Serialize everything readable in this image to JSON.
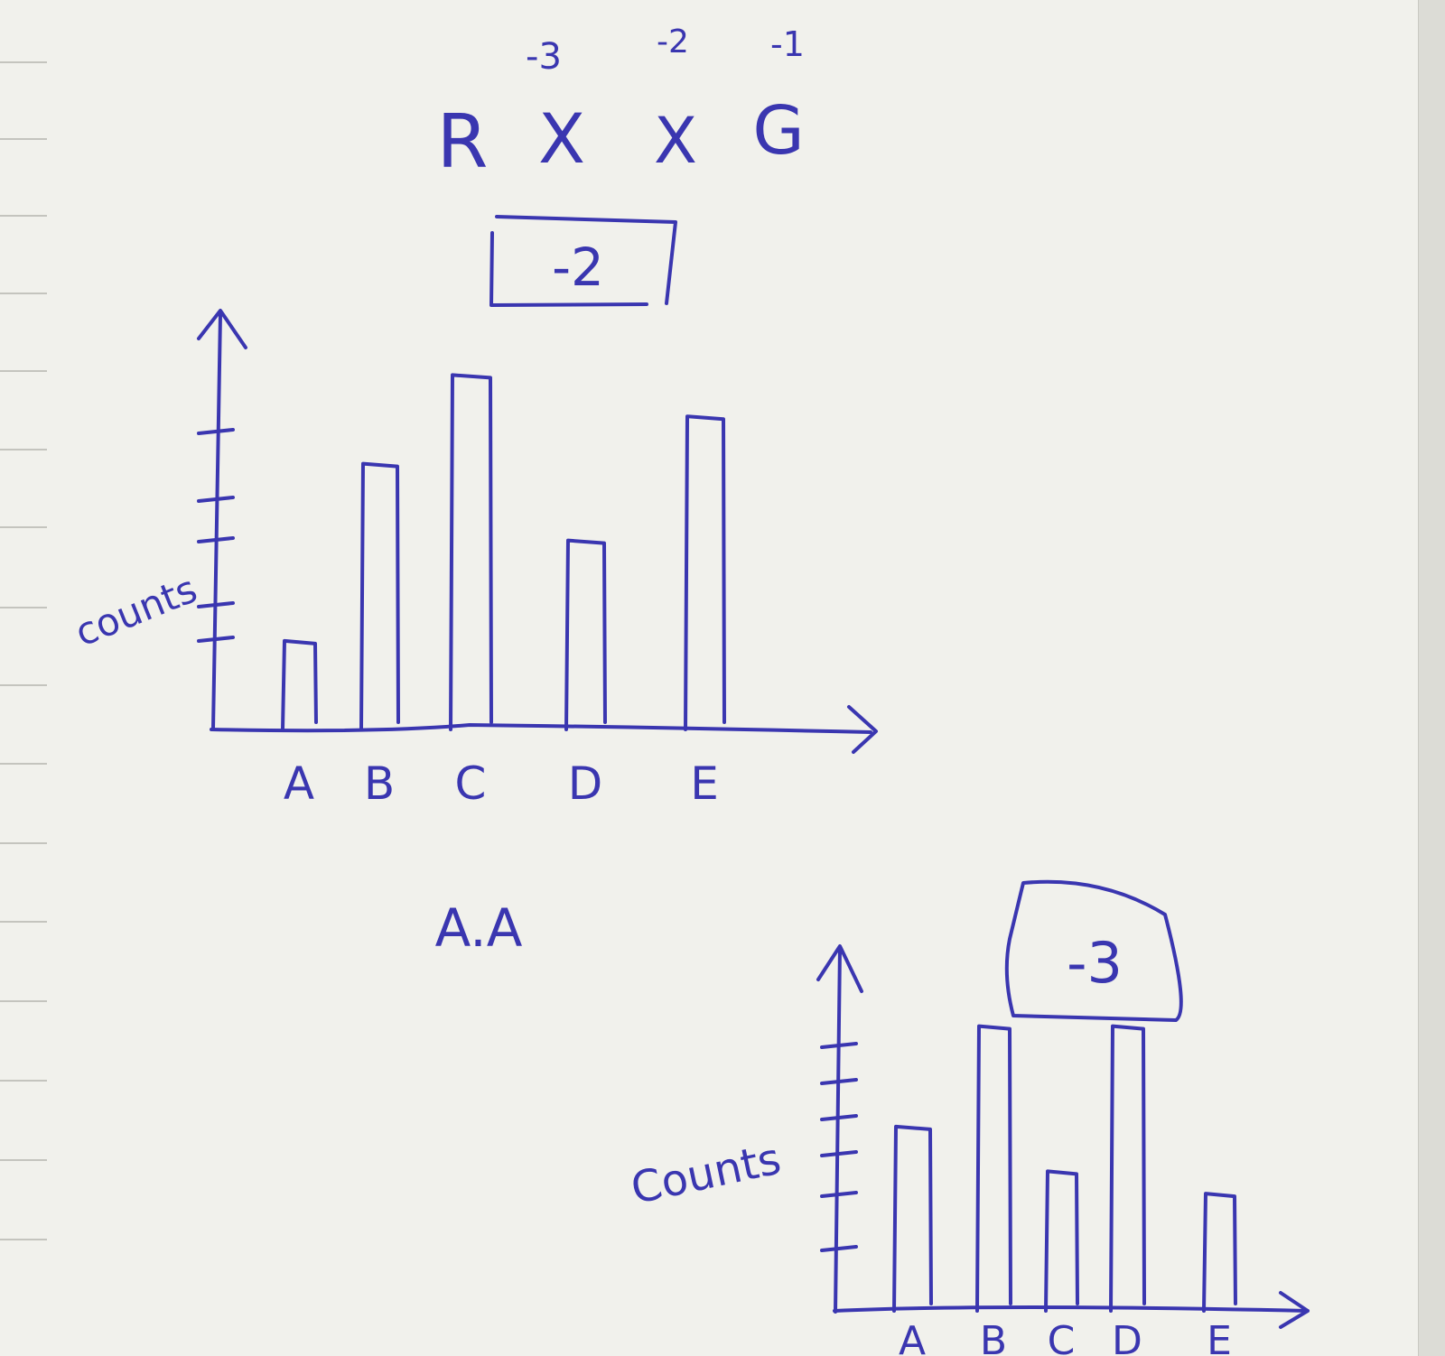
{
  "header": {
    "letters": [
      "R",
      "X",
      "X",
      "G"
    ],
    "scores": [
      "-3",
      "-2",
      "-1"
    ],
    "boxed_value": "-2"
  },
  "between_label": "A.A",
  "colors": {
    "ink": "#3a36b0",
    "paper": "#f1f1ec"
  },
  "chart_data": [
    {
      "type": "bar",
      "ylabel": "counts",
      "categories": [
        "A",
        "B",
        "C",
        "D",
        "E"
      ],
      "values": [
        1.5,
        4.5,
        6,
        3.2,
        5.3
      ],
      "ylim": [
        0,
        7
      ],
      "grid": false
    },
    {
      "type": "bar",
      "ylabel": "Counts",
      "boxed_value": "-3",
      "categories": [
        "A",
        "B",
        "C",
        "D",
        "E"
      ],
      "values": [
        3.3,
        5.1,
        2.5,
        5.1,
        2.1
      ],
      "ylim": [
        0,
        6.5
      ],
      "grid": false
    }
  ]
}
